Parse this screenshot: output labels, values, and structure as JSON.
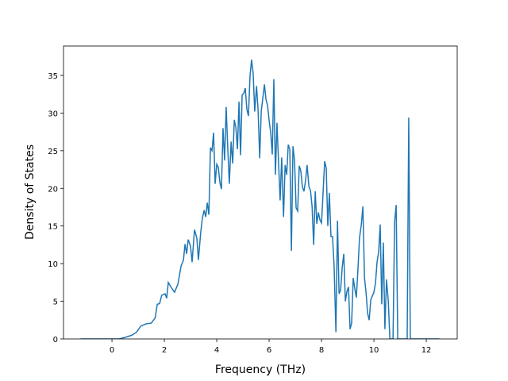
{
  "chart_data": {
    "type": "line",
    "x_label": "Frequency (THz)",
    "y_label": "Density of States",
    "xlim": [
      -1.85,
      13.18
    ],
    "ylim": [
      0,
      38.9
    ],
    "xticks": [
      0,
      2,
      4,
      6,
      8,
      10,
      12
    ],
    "yticks": [
      0,
      5,
      10,
      15,
      20,
      25,
      30,
      35
    ],
    "x": [
      -1.2,
      -0.5,
      0.0,
      0.27,
      0.5,
      0.76,
      0.94,
      1.1,
      1.3,
      1.5,
      1.65,
      1.73,
      1.82,
      1.9,
      2.03,
      2.09,
      2.15,
      2.27,
      2.39,
      2.52,
      2.64,
      2.73,
      2.79,
      2.85,
      2.91,
      3.0,
      3.06,
      3.15,
      3.24,
      3.3,
      3.39,
      3.45,
      3.52,
      3.58,
      3.64,
      3.7,
      3.76,
      3.82,
      3.88,
      3.94,
      4.0,
      4.06,
      4.12,
      4.18,
      4.24,
      4.3,
      4.36,
      4.42,
      4.48,
      4.55,
      4.61,
      4.67,
      4.73,
      4.79,
      4.85,
      4.91,
      4.97,
      5.03,
      5.09,
      5.15,
      5.21,
      5.27,
      5.33,
      5.39,
      5.45,
      5.52,
      5.58,
      5.64,
      5.7,
      5.76,
      5.82,
      5.88,
      5.94,
      6.0,
      6.06,
      6.12,
      6.18,
      6.24,
      6.3,
      6.36,
      6.42,
      6.48,
      6.55,
      6.61,
      6.67,
      6.73,
      6.79,
      6.85,
      6.91,
      6.97,
      7.03,
      7.09,
      7.15,
      7.21,
      7.27,
      7.33,
      7.39,
      7.45,
      7.52,
      7.58,
      7.64,
      7.7,
      7.76,
      7.82,
      7.88,
      7.94,
      8.0,
      8.06,
      8.12,
      8.18,
      8.24,
      8.3,
      8.36,
      8.42,
      8.48,
      8.55,
      8.61,
      8.67,
      8.73,
      8.79,
      8.85,
      8.91,
      8.97,
      9.03,
      9.09,
      9.15,
      9.21,
      9.27,
      9.33,
      9.39,
      9.45,
      9.52,
      9.58,
      9.64,
      9.7,
      9.76,
      9.82,
      9.88,
      9.94,
      10.0,
      10.06,
      10.12,
      10.18,
      10.24,
      10.3,
      10.36,
      10.42,
      10.48,
      10.55,
      10.61,
      10.73,
      10.79,
      10.85,
      10.91,
      11.27,
      11.33,
      11.39,
      12.0,
      12.5
    ],
    "series": [
      {
        "name": "DOS",
        "color": "#1f77b4",
        "values": [
          0,
          0,
          0,
          0,
          0.2,
          0.5,
          0.9,
          1.7,
          2.0,
          2.1,
          2.8,
          4.6,
          4.7,
          5.8,
          6.0,
          5.4,
          7.5,
          6.8,
          6.2,
          7.3,
          9.7,
          10.5,
          12.6,
          11.3,
          13.2,
          12.3,
          10.2,
          14.5,
          13.4,
          10.5,
          14.2,
          16.0,
          17.1,
          16.2,
          18.1,
          16.5,
          25.4,
          25.0,
          27.4,
          20.6,
          23.2,
          22.8,
          20.8,
          19.9,
          28.0,
          23.7,
          30.8,
          25.4,
          20.6,
          26.2,
          23.3,
          29.1,
          28.1,
          25.2,
          31.5,
          24.4,
          32.4,
          32.6,
          33.3,
          30.5,
          29.6,
          34.9,
          37.1,
          35.3,
          30.2,
          33.6,
          30.3,
          24.0,
          30.3,
          32.0,
          33.8,
          31.8,
          31.0,
          29.0,
          27.4,
          24.5,
          34.5,
          21.8,
          28.7,
          23.4,
          18.4,
          24.1,
          16.2,
          23.1,
          21.8,
          25.8,
          25.2,
          11.7,
          25.6,
          23.7,
          17.4,
          17.0,
          23.0,
          22.3,
          20.2,
          19.6,
          21.0,
          23.1,
          20.2,
          19.7,
          17.6,
          12.5,
          19.6,
          15.3,
          16.8,
          15.8,
          15.4,
          19.4,
          23.6,
          22.7,
          15.0,
          19.4,
          13.6,
          13.6,
          9.7,
          0.9,
          15.7,
          6.0,
          6.5,
          9.5,
          11.3,
          5.0,
          6.3,
          6.9,
          1.3,
          2.1,
          8.1,
          6.7,
          5.5,
          9.2,
          13.4,
          15.2,
          17.6,
          8.1,
          6.2,
          3.4,
          2.5,
          5.2,
          5.7,
          6.2,
          7.4,
          10.2,
          11.5,
          15.2,
          4.6,
          12.8,
          1.3,
          7.9,
          5.0,
          0,
          0,
          15.5,
          17.8,
          0,
          0,
          29.4,
          0,
          0,
          0
        ]
      }
    ]
  }
}
